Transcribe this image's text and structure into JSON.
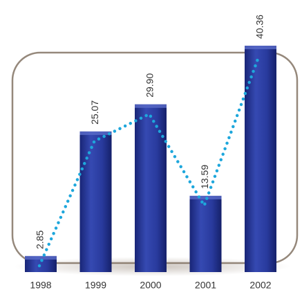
{
  "chart_data": {
    "type": "bar",
    "categories": [
      "1998",
      "1999",
      "2000",
      "2001",
      "2002"
    ],
    "values": [
      2.85,
      25.07,
      29.9,
      13.59,
      40.36
    ],
    "value_labels": [
      "2.85",
      "25.07",
      "29.90",
      "13.59",
      "40.36"
    ],
    "color": "#23339a",
    "line_color": "#1ea7dc"
  }
}
